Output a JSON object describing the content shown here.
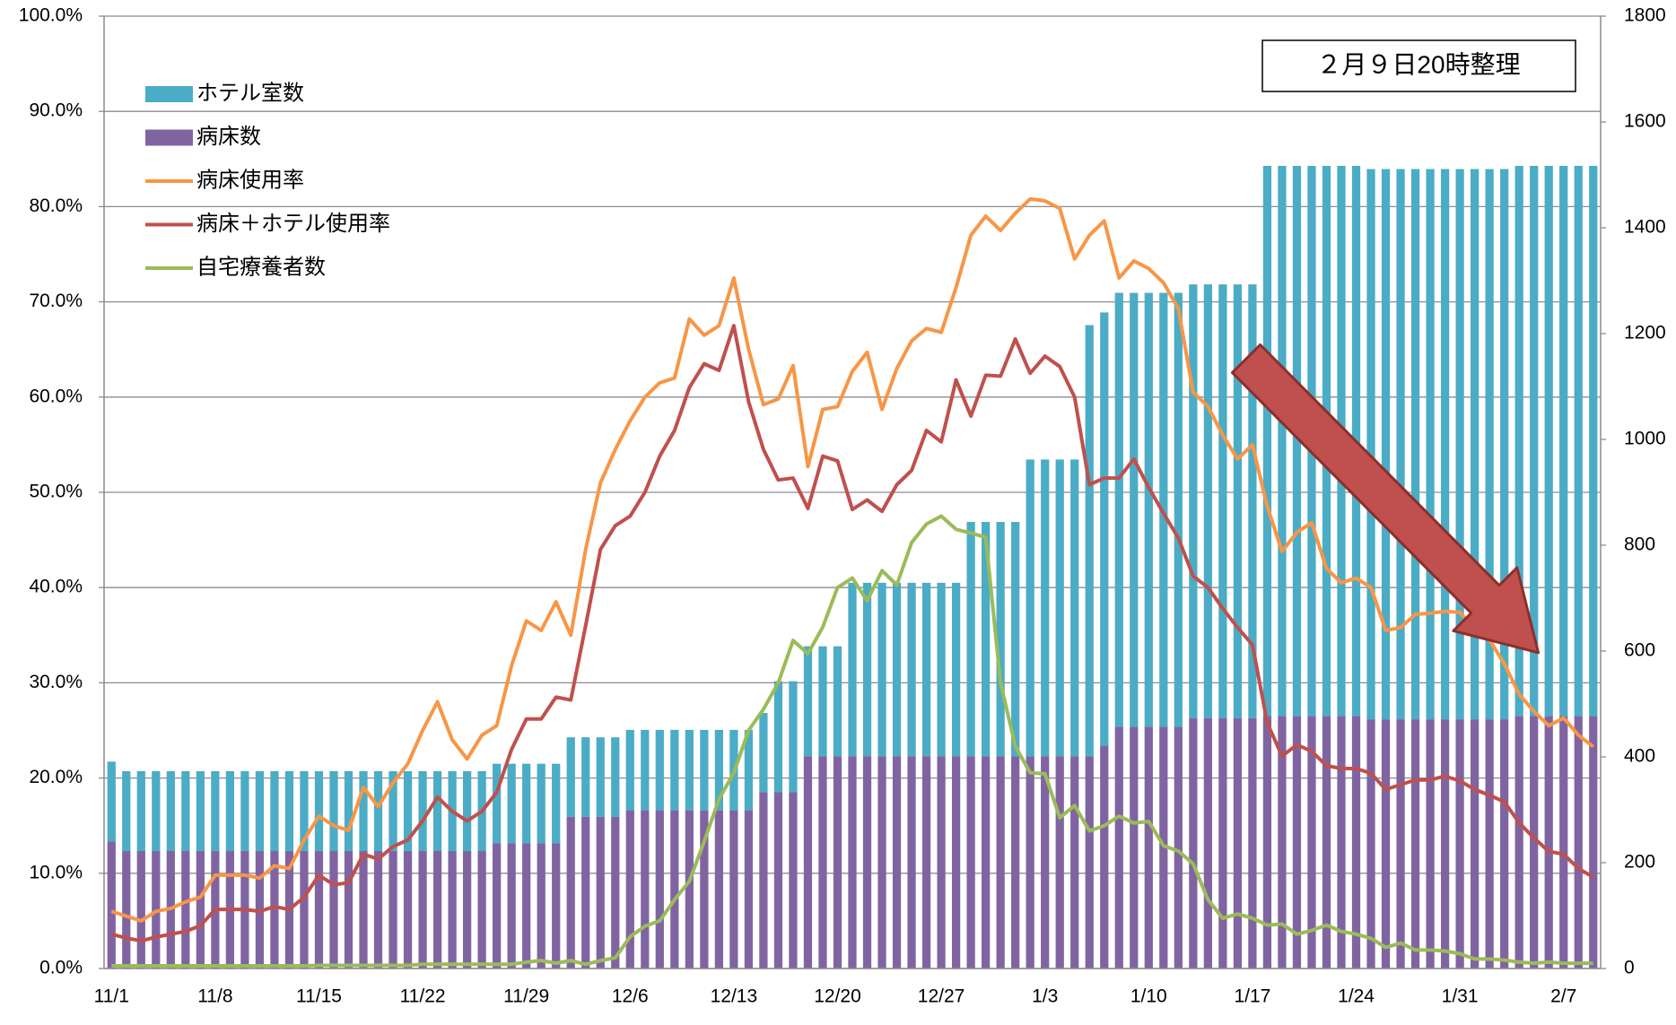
{
  "chart_data": {
    "type": "combo",
    "annotation": "２月９日20時整理",
    "legend": "upper left",
    "grid": true,
    "categories": [
      "11/1",
      null,
      null,
      null,
      null,
      null,
      null,
      "11/8",
      null,
      null,
      null,
      null,
      null,
      null,
      "11/15",
      null,
      null,
      null,
      null,
      null,
      null,
      "11/22",
      null,
      null,
      null,
      null,
      null,
      null,
      "11/29",
      null,
      null,
      null,
      null,
      null,
      null,
      "12/6",
      null,
      null,
      null,
      null,
      null,
      null,
      "12/13",
      null,
      null,
      null,
      null,
      null,
      null,
      "12/20",
      null,
      null,
      null,
      null,
      null,
      null,
      "12/27",
      null,
      null,
      null,
      null,
      null,
      null,
      "1/3",
      null,
      null,
      null,
      null,
      null,
      null,
      "1/10",
      null,
      null,
      null,
      null,
      null,
      null,
      "1/17",
      null,
      null,
      null,
      null,
      null,
      null,
      "1/24",
      null,
      null,
      null,
      null,
      null,
      null,
      "1/31",
      null,
      null,
      null,
      null,
      null,
      null,
      "2/7",
      null,
      null
    ],
    "ylim": [
      0,
      100
    ],
    "yticks": [
      {
        "value": 0,
        "label": "0.0%"
      },
      {
        "value": 10,
        "label": "10.0%"
      },
      {
        "value": 20,
        "label": "20.0%"
      },
      {
        "value": 30,
        "label": "30.0%"
      },
      {
        "value": 40,
        "label": "40.0%"
      },
      {
        "value": 50,
        "label": "50.0%"
      },
      {
        "value": 60,
        "label": "60.0%"
      },
      {
        "value": 70,
        "label": "70.0%"
      },
      {
        "value": 80,
        "label": "80.0%"
      },
      {
        "value": 90,
        "label": "90.0%"
      },
      {
        "value": 100,
        "label": "100.0%"
      }
    ],
    "y2lim": [
      0,
      1800
    ],
    "y2ticks": [
      0,
      200,
      400,
      600,
      800,
      1000,
      1200,
      1400,
      1600,
      1800
    ],
    "series": [
      {
        "name": "ホテル室数",
        "type": "bar",
        "axis": "y2",
        "color": "#4bacc6",
        "values": [
          151,
          151,
          151,
          151,
          151,
          151,
          151,
          151,
          151,
          151,
          151,
          151,
          151,
          151,
          151,
          151,
          151,
          151,
          151,
          151,
          151,
          151,
          151,
          151,
          151,
          151,
          150,
          150,
          150,
          150,
          150,
          150,
          150,
          150,
          150,
          152,
          152,
          152,
          152,
          152,
          152,
          152,
          152,
          152,
          150,
          210,
          210,
          208,
          208,
          208,
          328,
          328,
          328,
          328,
          328,
          328,
          328,
          328,
          443,
          443,
          443,
          443,
          561,
          561,
          561,
          561,
          815,
          819,
          820,
          820,
          820,
          820,
          820,
          820,
          820,
          820,
          820,
          820,
          1040,
          1040,
          1040,
          1040,
          1040,
          1040,
          1040,
          1040,
          1040,
          1040,
          1040,
          1040,
          1040,
          1040,
          1040,
          1040,
          1040,
          1040,
          1040,
          1040,
          1040,
          1040,
          1040
        ]
      },
      {
        "name": "病床数",
        "type": "bar",
        "axis": "y2",
        "color": "#8064a2",
        "values": [
          240,
          222,
          222,
          222,
          222,
          222,
          222,
          222,
          222,
          222,
          222,
          222,
          222,
          222,
          222,
          222,
          222,
          222,
          222,
          222,
          222,
          222,
          222,
          222,
          222,
          222,
          237,
          237,
          237,
          237,
          237,
          287,
          287,
          287,
          287,
          299,
          299,
          299,
          299,
          299,
          299,
          299,
          299,
          299,
          333,
          333,
          333,
          401,
          401,
          401,
          401,
          401,
          401,
          401,
          401,
          401,
          401,
          401,
          401,
          401,
          401,
          401,
          401,
          401,
          401,
          401,
          401,
          421,
          457,
          457,
          457,
          457,
          457,
          473,
          473,
          473,
          473,
          473,
          477,
          477,
          477,
          477,
          477,
          477,
          477,
          471,
          471,
          471,
          471,
          471,
          471,
          471,
          471,
          471,
          471,
          477,
          477,
          477,
          477,
          477,
          477
        ]
      },
      {
        "name": "病床使用率",
        "type": "line",
        "color": "#f79646",
        "values": [
          6.0,
          5.5,
          5.0,
          6.0,
          6.3,
          7.0,
          7.5,
          9.8,
          9.8,
          9.8,
          9.5,
          10.8,
          10.5,
          13.5,
          16.0,
          15.0,
          14.5,
          19.0,
          17.0,
          19.5,
          21.5,
          25.0,
          28.0,
          24.0,
          22.0,
          24.5,
          25.5,
          31.8,
          36.5,
          35.5,
          38.5,
          35.0,
          44.0,
          51.0,
          54.5,
          57.5,
          60.0,
          61.5,
          62.0,
          68.2,
          66.5,
          67.5,
          72.5,
          65.0,
          59.2,
          59.8,
          63.3,
          52.7,
          58.7,
          59.0,
          62.7,
          64.7,
          58.7,
          63.0,
          65.9,
          67.2,
          66.8,
          71.5,
          77.0,
          79.0,
          77.5,
          79.3,
          80.8,
          80.6,
          79.8,
          74.5,
          77.0,
          78.5,
          72.5,
          74.3,
          73.5,
          72.0,
          69.3,
          60.5,
          59.0,
          56.0,
          53.5,
          55.0,
          48.5,
          43.8,
          45.8,
          46.8,
          42.0,
          40.5,
          41.0,
          40.0,
          35.5,
          35.8,
          37.2,
          37.3,
          37.5,
          37.4,
          35.5,
          34.5,
          32.0,
          28.8,
          27.0,
          25.5,
          26.3,
          24.5,
          23.3
        ]
      },
      {
        "name": "病床＋ホテル使用率",
        "type": "line",
        "color": "#c0504d",
        "values": [
          3.6,
          3.2,
          2.9,
          3.3,
          3.6,
          3.9,
          4.5,
          6.2,
          6.2,
          6.2,
          6.0,
          6.5,
          6.2,
          7.5,
          9.8,
          8.8,
          9.0,
          12.0,
          11.5,
          12.8,
          13.5,
          15.5,
          18.0,
          16.5,
          15.5,
          16.5,
          18.5,
          23.0,
          26.2,
          26.2,
          28.5,
          28.2,
          36.0,
          44.0,
          46.5,
          47.5,
          50.0,
          53.8,
          56.5,
          61.0,
          63.5,
          62.8,
          67.5,
          59.5,
          54.5,
          51.3,
          51.5,
          48.3,
          53.8,
          53.3,
          48.2,
          49.2,
          48.0,
          50.8,
          52.3,
          56.5,
          55.3,
          61.8,
          58.0,
          62.3,
          62.2,
          66.1,
          62.5,
          64.3,
          63.2,
          60.0,
          50.8,
          51.5,
          51.5,
          53.5,
          50.5,
          47.8,
          45.2,
          41.2,
          40.0,
          37.8,
          35.8,
          34.0,
          25.8,
          22.3,
          23.5,
          22.8,
          21.3,
          21.0,
          21.0,
          20.5,
          18.8,
          19.3,
          19.8,
          19.8,
          20.2,
          19.7,
          18.8,
          18.2,
          17.5,
          15.3,
          13.7,
          12.3,
          12.0,
          10.5,
          9.6
        ]
      },
      {
        "name": "自宅療養者数",
        "type": "line",
        "axis": "y2",
        "color": "#9bbb59",
        "values": [
          5,
          5,
          5,
          5,
          5,
          5,
          5,
          5,
          5,
          5,
          5,
          5,
          5,
          5,
          6,
          6,
          6,
          6,
          6,
          6,
          6,
          8,
          8,
          8,
          8,
          8,
          8,
          8,
          12,
          15,
          10,
          15,
          8,
          15,
          20,
          60,
          80,
          90,
          130,
          165,
          240,
          320,
          370,
          450,
          490,
          540,
          620,
          595,
          645,
          720,
          738,
          695,
          752,
          725,
          805,
          840,
          855,
          830,
          823,
          815,
          540,
          420,
          370,
          368,
          285,
          308,
          260,
          270,
          288,
          275,
          278,
          232,
          222,
          198,
          130,
          95,
          103,
          95,
          82,
          84,
          65,
          72,
          82,
          70,
          65,
          57,
          40,
          48,
          35,
          35,
          33,
          28,
          18,
          18,
          16,
          12,
          10,
          12,
          10,
          10,
          10
        ]
      }
    ]
  }
}
